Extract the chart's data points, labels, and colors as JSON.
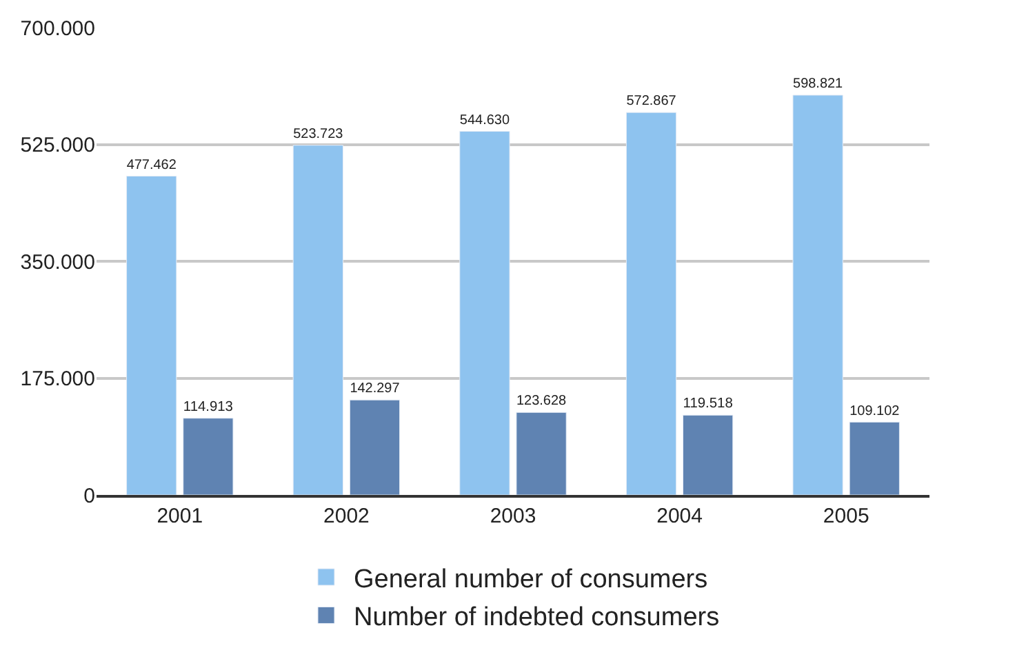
{
  "chart_data": {
    "type": "bar",
    "categories": [
      "2001",
      "2002",
      "2003",
      "2004",
      "2005"
    ],
    "series": [
      {
        "name": "General number of consumers",
        "color": "#8ec3ef",
        "values": [
          477462,
          523723,
          544630,
          572867,
          598821
        ],
        "value_labels": [
          "477.462",
          "523.723",
          "544.630",
          "572.867",
          "598.821"
        ]
      },
      {
        "name": "Number of indebted consumers",
        "color": "#5f83b2",
        "values": [
          114913,
          142297,
          123628,
          119518,
          109102
        ],
        "value_labels": [
          "114.913",
          "142.297",
          "123.628",
          "119.518",
          "109.102"
        ]
      }
    ],
    "ylim": [
      0,
      700000
    ],
    "yticks": [
      0,
      {
        "value": 175000,
        "label": "175.000"
      },
      {
        "value": 350000,
        "label": "350.000"
      },
      {
        "value": 525000,
        "label": "525.000"
      },
      {
        "value": 700000,
        "label": "700.000"
      }
    ],
    "grid": "y",
    "legend": "bottom"
  }
}
